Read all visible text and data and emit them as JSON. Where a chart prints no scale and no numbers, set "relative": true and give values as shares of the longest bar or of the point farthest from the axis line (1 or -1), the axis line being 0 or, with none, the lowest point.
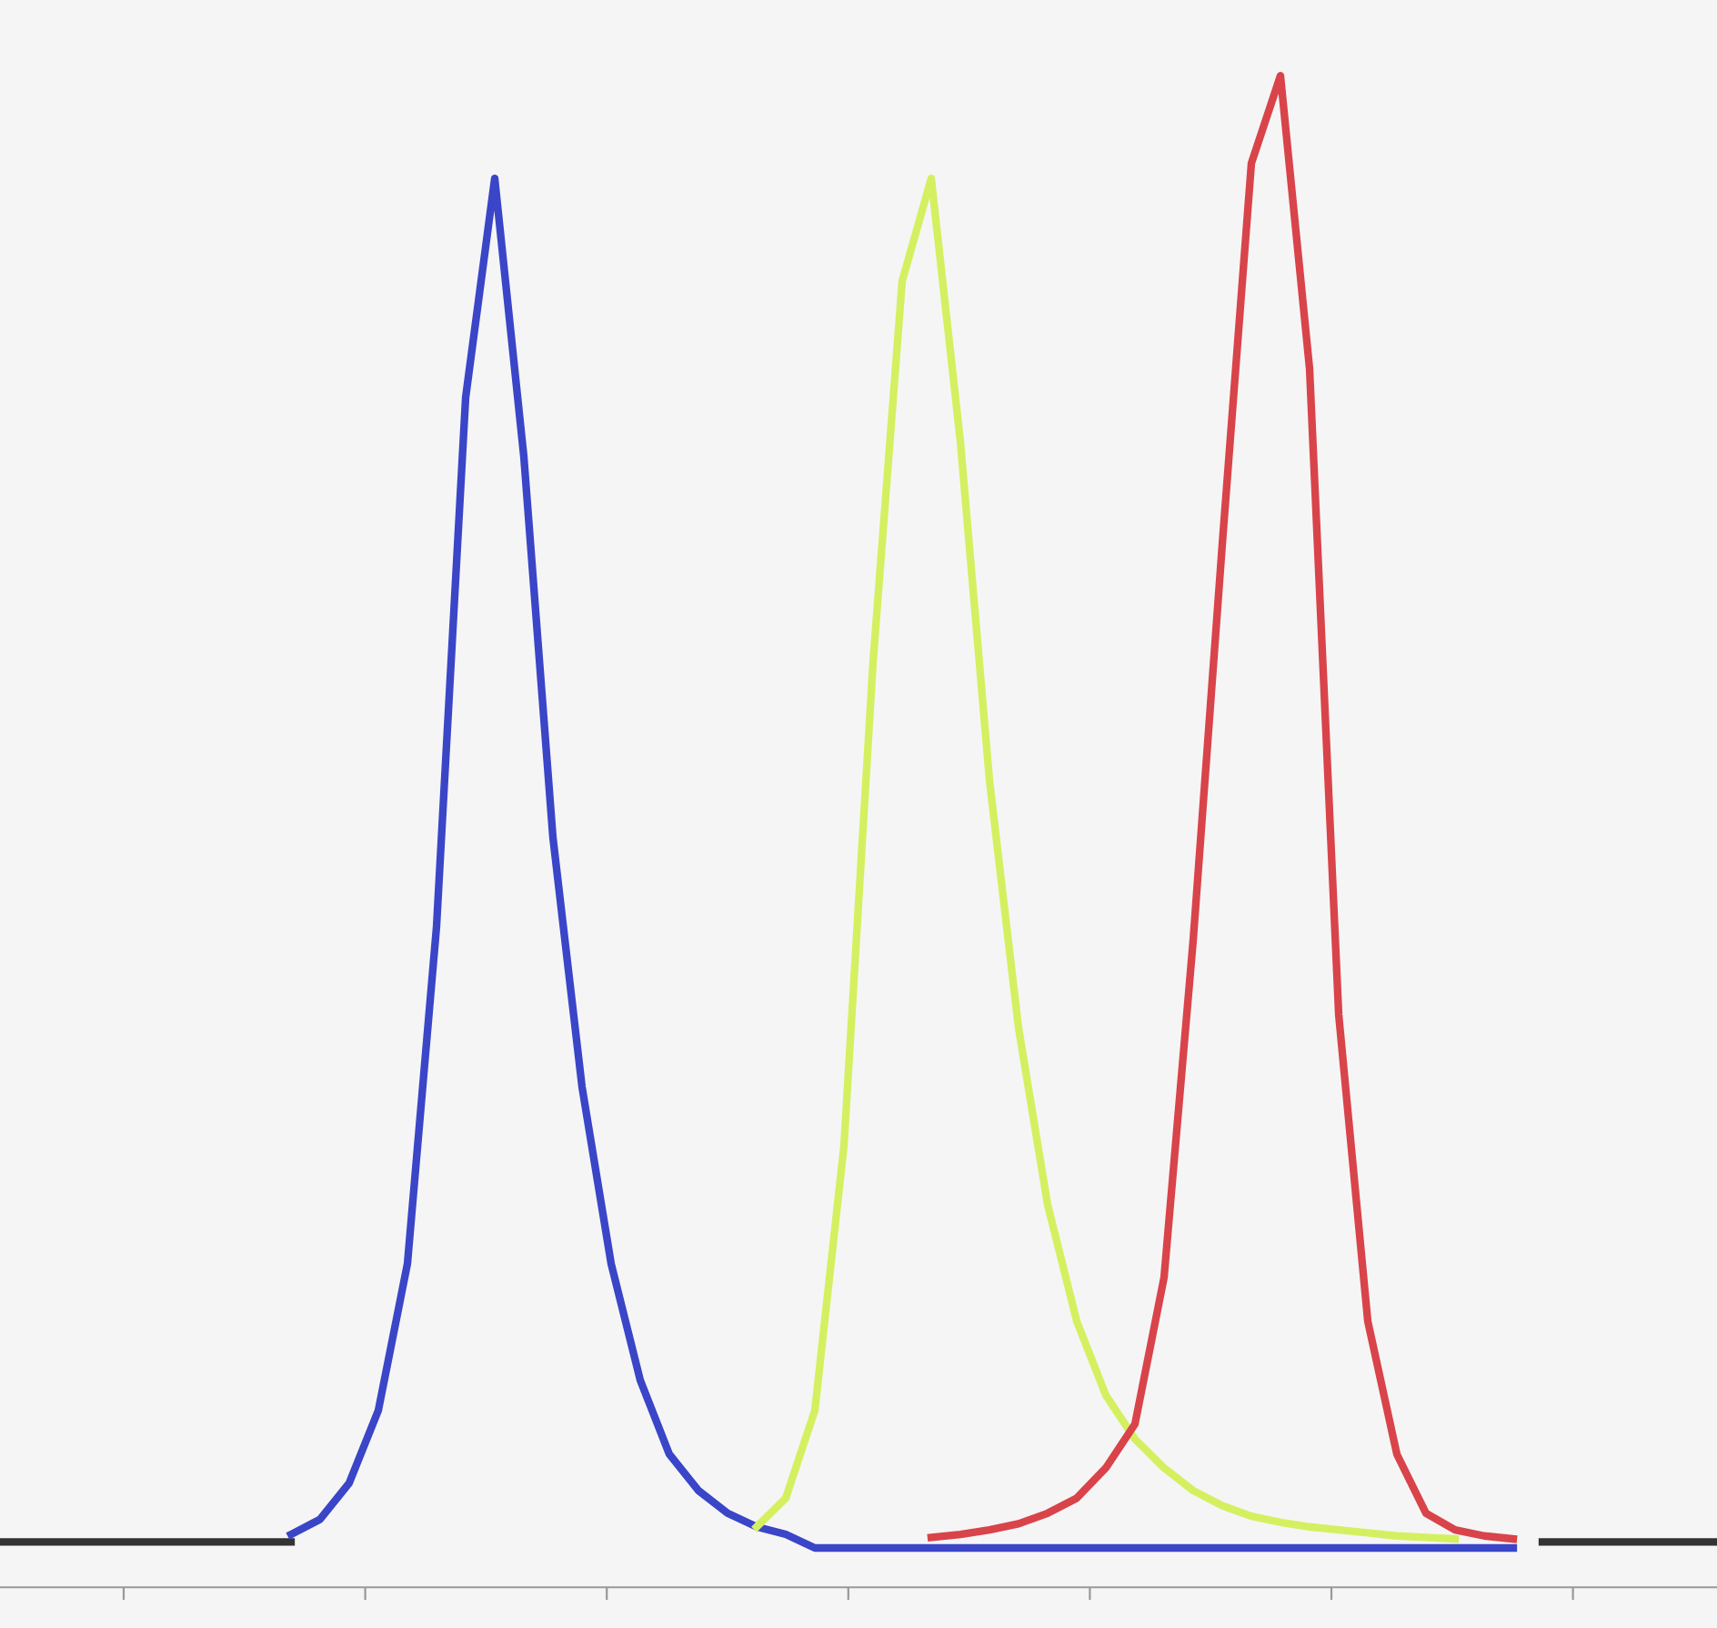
{
  "chart_data": {
    "type": "line",
    "relative": true,
    "tick_labels": false,
    "grid": false,
    "legend": false,
    "marker": "none",
    "line_style": "solid",
    "categories": [
      null,
      null,
      null,
      null,
      null,
      null,
      null,
      null,
      null,
      null,
      null,
      null,
      null,
      null,
      null,
      null,
      null,
      null,
      null,
      null,
      null,
      null,
      null,
      null,
      null,
      null,
      null,
      null,
      null,
      null,
      null,
      null,
      null,
      null,
      null,
      null,
      null,
      null,
      null,
      null,
      null,
      null,
      null,
      null,
      null,
      null,
      null,
      null,
      null,
      null,
      null,
      null,
      null,
      null,
      null,
      null,
      null,
      null,
      null,
      null
    ],
    "series": [
      {
        "color": "#333333",
        "values": [
          0.03,
          0.03,
          0.03,
          0.03,
          0.03,
          0.03,
          0.03,
          0.03,
          0.03,
          0.03,
          0.03,
          null,
          null,
          null,
          null,
          null,
          null,
          null,
          null,
          null,
          null,
          null,
          null,
          null,
          null,
          null,
          null,
          null,
          null,
          null,
          null,
          null,
          null,
          null,
          null,
          null,
          null,
          null,
          null,
          null,
          null,
          null,
          null,
          null,
          null,
          null,
          null,
          null,
          null,
          null,
          null,
          null,
          null,
          0.03,
          0.03,
          0.03,
          0.03,
          0.03,
          0.03,
          0.03
        ]
      },
      {
        "color": "#3a45c8",
        "values": [
          null,
          null,
          null,
          null,
          null,
          null,
          null,
          null,
          null,
          null,
          0.035,
          0.045,
          0.069,
          0.117,
          0.214,
          0.437,
          0.787,
          0.932,
          0.748,
          0.496,
          0.331,
          0.214,
          0.137,
          0.088,
          0.064,
          0.049,
          0.04,
          0.035,
          0.026,
          0.026,
          0.026,
          0.026,
          0.026,
          0.026,
          0.026,
          0.026,
          0.026,
          0.026,
          0.026,
          0.026,
          0.026,
          0.026,
          0.026,
          0.026,
          0.026,
          0.026,
          0.026,
          0.026,
          0.026,
          0.026,
          0.026,
          0.026,
          0.026,
          null,
          null,
          null,
          null,
          null,
          null,
          null
        ]
      },
      {
        "color": "#d4f060",
        "values": [
          null,
          null,
          null,
          null,
          null,
          null,
          null,
          null,
          null,
          null,
          null,
          null,
          null,
          null,
          null,
          null,
          null,
          null,
          null,
          null,
          null,
          null,
          null,
          null,
          null,
          null,
          0.04,
          0.059,
          0.117,
          0.292,
          0.612,
          0.864,
          0.932,
          0.758,
          0.534,
          0.37,
          0.253,
          0.176,
          0.127,
          0.098,
          0.079,
          0.064,
          0.054,
          0.047,
          0.043,
          0.04,
          0.038,
          0.036,
          0.034,
          0.033,
          0.032,
          null,
          null,
          null,
          null,
          null,
          null,
          null,
          null,
          null
        ]
      },
      {
        "color": "#d9434a",
        "values": [
          null,
          null,
          null,
          null,
          null,
          null,
          null,
          null,
          null,
          null,
          null,
          null,
          null,
          null,
          null,
          null,
          null,
          null,
          null,
          null,
          null,
          null,
          null,
          null,
          null,
          null,
          null,
          null,
          null,
          null,
          null,
          null,
          0.033,
          0.035,
          0.038,
          0.042,
          0.049,
          0.059,
          0.079,
          0.108,
          0.205,
          0.428,
          0.69,
          0.942,
          1.0,
          0.806,
          0.379,
          0.176,
          0.088,
          0.049,
          0.038,
          0.034,
          0.032,
          null,
          null,
          null,
          null,
          null,
          null,
          null
        ]
      }
    ]
  }
}
